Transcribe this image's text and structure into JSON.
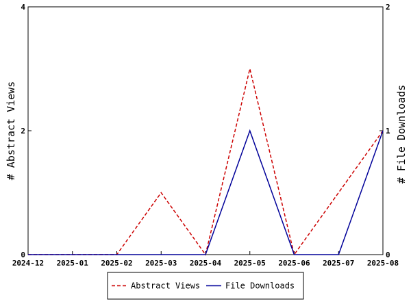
{
  "chart_data": {
    "type": "line",
    "categories": [
      "2024-12",
      "2025-01",
      "2025-02",
      "2025-03",
      "2025-04",
      "2025-05",
      "2025-06",
      "2025-07",
      "2025-08"
    ],
    "series": [
      {
        "name": "Abstract Views",
        "values": [
          0,
          0,
          0,
          1,
          0,
          3,
          0,
          1,
          2
        ],
        "color": "#cc0000",
        "style": "dashed",
        "axis": "left"
      },
      {
        "name": "File Downloads",
        "values": [
          0,
          0,
          0,
          0,
          0,
          1,
          0,
          0,
          1
        ],
        "color": "#000099",
        "style": "solid",
        "axis": "right"
      }
    ],
    "ylabel": "# Abstract Views",
    "y2label": "# File Downloads",
    "ylim": [
      0,
      4
    ],
    "y2lim": [
      0,
      2
    ],
    "yticks": [
      "0",
      "2",
      "4"
    ],
    "y2ticks": [
      "0",
      "1",
      "2"
    ],
    "grid": false,
    "legend": "bottom-center"
  }
}
